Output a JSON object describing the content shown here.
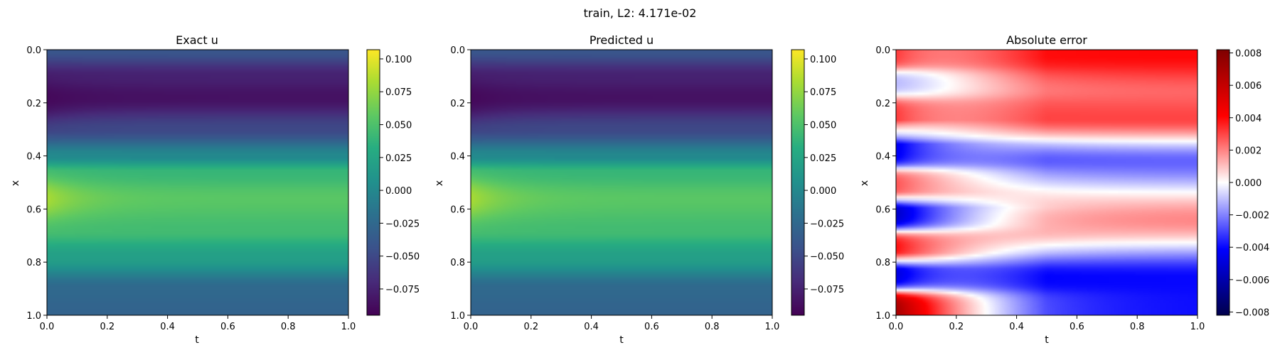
{
  "figure": {
    "suptitle": "train, L2: 4.171e-02"
  },
  "chart_data": [
    {
      "type": "heatmap",
      "title": "Exact u",
      "xlabel": "t",
      "ylabel": "x",
      "xlim": [
        0.0,
        1.0
      ],
      "ylim": [
        1.0,
        0.0
      ],
      "x_ticks": [
        "0.0",
        "0.2",
        "0.4",
        "0.6",
        "0.8",
        "1.0"
      ],
      "y_ticks": [
        "0.0",
        "0.2",
        "0.4",
        "0.6",
        "0.8",
        "1.0"
      ],
      "colormap": "viridis",
      "colorbar": {
        "vmin": -0.095,
        "vmax": 0.107,
        "ticks": [
          -0.075,
          -0.05,
          -0.025,
          0.0,
          0.025,
          0.05,
          0.075,
          0.1
        ],
        "tick_labels": [
          "−0.075",
          "−0.050",
          "−0.025",
          "0.000",
          "0.025",
          "0.050",
          "0.075",
          "0.100"
        ]
      },
      "field": {
        "x_profile": [
          [
            0.0,
            -0.04
          ],
          [
            0.1,
            -0.075
          ],
          [
            0.18,
            -0.085
          ],
          [
            0.3,
            -0.05
          ],
          [
            0.4,
            0.0
          ],
          [
            0.46,
            0.04
          ],
          [
            0.56,
            0.055
          ],
          [
            0.68,
            0.045
          ],
          [
            0.78,
            0.02
          ],
          [
            0.9,
            -0.025
          ],
          [
            1.0,
            -0.03
          ]
        ],
        "t0_peak": 0.105,
        "t0_trough": -0.095
      }
    },
    {
      "type": "heatmap",
      "title": "Predicted u",
      "xlabel": "t",
      "ylabel": "x",
      "xlim": [
        0.0,
        1.0
      ],
      "ylim": [
        1.0,
        0.0
      ],
      "x_ticks": [
        "0.0",
        "0.2",
        "0.4",
        "0.6",
        "0.8",
        "1.0"
      ],
      "y_ticks": [
        "0.0",
        "0.2",
        "0.4",
        "0.6",
        "0.8",
        "1.0"
      ],
      "colormap": "viridis",
      "colorbar": {
        "vmin": -0.095,
        "vmax": 0.107,
        "ticks": [
          -0.075,
          -0.05,
          -0.025,
          0.0,
          0.025,
          0.05,
          0.075,
          0.1
        ],
        "tick_labels": [
          "−0.075",
          "−0.050",
          "−0.025",
          "0.000",
          "0.025",
          "0.050",
          "0.075",
          "0.100"
        ]
      },
      "field": {
        "x_profile": [
          [
            0.0,
            -0.04
          ],
          [
            0.1,
            -0.075
          ],
          [
            0.18,
            -0.085
          ],
          [
            0.3,
            -0.05
          ],
          [
            0.4,
            0.0
          ],
          [
            0.46,
            0.04
          ],
          [
            0.56,
            0.055
          ],
          [
            0.68,
            0.045
          ],
          [
            0.78,
            0.02
          ],
          [
            0.9,
            -0.025
          ],
          [
            1.0,
            -0.03
          ]
        ],
        "t0_peak": 0.105,
        "t0_trough": -0.095
      }
    },
    {
      "type": "heatmap",
      "title": "Absolute error",
      "xlabel": "t",
      "ylabel": "x",
      "xlim": [
        0.0,
        1.0
      ],
      "ylim": [
        1.0,
        0.0
      ],
      "x_ticks": [
        "0.0",
        "0.2",
        "0.4",
        "0.6",
        "0.8",
        "1.0"
      ],
      "y_ticks": [
        "0.0",
        "0.2",
        "0.4",
        "0.6",
        "0.8",
        "1.0"
      ],
      "colormap": "seismic",
      "colorbar": {
        "vmin": -0.0082,
        "vmax": 0.0082,
        "ticks": [
          -0.008,
          -0.006,
          -0.004,
          -0.002,
          0.0,
          0.002,
          0.004,
          0.006,
          0.008
        ],
        "tick_labels": [
          "−0.008",
          "−0.006",
          "−0.004",
          "−0.002",
          "0.000",
          "0.002",
          "0.004",
          "0.006",
          "0.008"
        ]
      },
      "field": {
        "bands": [
          [
            0.02,
            0.0032
          ],
          [
            0.13,
            -0.0012
          ],
          [
            0.23,
            0.0032
          ],
          [
            0.39,
            -0.0045
          ],
          [
            0.5,
            0.0028
          ],
          [
            0.63,
            -0.0055
          ],
          [
            0.73,
            0.004
          ],
          [
            0.86,
            -0.005
          ],
          [
            0.96,
            0.007
          ]
        ],
        "lateral_profile": [
          [
            0.02,
            0.004
          ],
          [
            0.16,
            0.0025
          ],
          [
            0.26,
            0.003
          ],
          [
            0.42,
            -0.0025
          ],
          [
            0.64,
            0.002
          ],
          [
            0.86,
            -0.004
          ],
          [
            0.97,
            -0.004
          ]
        ]
      }
    }
  ]
}
